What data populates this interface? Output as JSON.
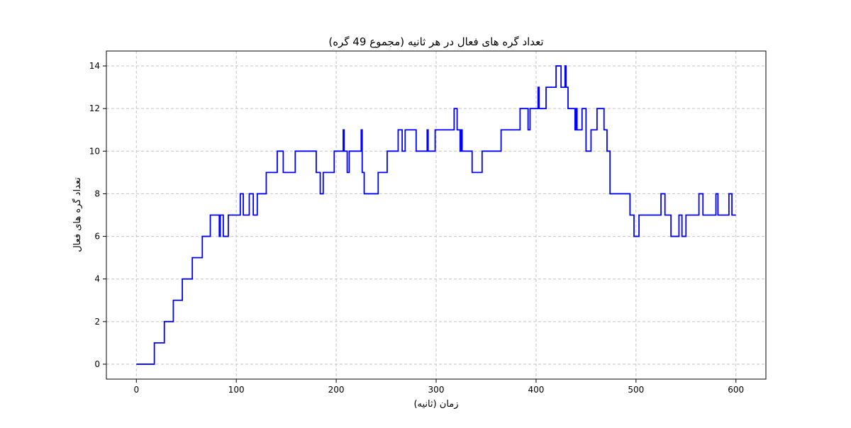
{
  "chart_data": {
    "type": "line",
    "title": "تعداد گره های فعال در هر ثانیه (مجموع 49 گره)",
    "xlabel": "زمان (ثانیه)",
    "ylabel": "تعداد گره های فعال",
    "xlim": [
      -30,
      630
    ],
    "ylim": [
      -0.7,
      14.7
    ],
    "xticks": [
      0,
      100,
      200,
      300,
      400,
      500,
      600
    ],
    "yticks": [
      0,
      2,
      4,
      6,
      8,
      10,
      12,
      14
    ],
    "grid": true,
    "line_color": "#0000ff",
    "step": "post",
    "x": [
      0,
      18,
      28,
      37,
      46,
      56,
      66,
      74,
      83,
      84,
      87,
      91,
      92,
      93,
      104,
      107,
      113,
      117,
      121,
      130,
      141,
      147,
      159,
      180,
      184,
      187,
      198,
      207,
      208,
      211,
      213,
      216,
      225,
      226,
      227,
      228,
      242,
      251,
      262,
      266,
      269,
      280,
      291,
      292,
      294,
      299,
      318,
      321,
      324,
      325,
      326,
      327,
      328,
      336,
      346,
      365,
      384,
      392,
      394,
      396,
      402,
      403,
      404,
      410,
      420,
      425,
      429,
      430,
      431,
      432,
      439,
      440,
      441,
      442,
      446,
      450,
      455,
      458,
      461,
      468,
      471,
      474,
      477,
      480,
      494,
      498,
      503,
      525,
      529,
      535,
      543,
      546,
      550,
      553,
      563,
      567,
      580,
      582,
      589,
      593,
      596,
      600
    ],
    "values": [
      0,
      1,
      2,
      3,
      4,
      5,
      6,
      7,
      6,
      7,
      6,
      6,
      7,
      7,
      8,
      7,
      8,
      7,
      8,
      9,
      10,
      9,
      10,
      9,
      8,
      9,
      10,
      11,
      10,
      9,
      10,
      10,
      11,
      9,
      9,
      8,
      9,
      10,
      11,
      10,
      11,
      10,
      11,
      10,
      10,
      11,
      12,
      11,
      10,
      11,
      10,
      10,
      10,
      9,
      10,
      11,
      12,
      11,
      12,
      12,
      13,
      12,
      12,
      13,
      14,
      13,
      14,
      13,
      13,
      12,
      11,
      12,
      11,
      11,
      12,
      10,
      11,
      11,
      12,
      11,
      10,
      8,
      8,
      8,
      7,
      6,
      7,
      8,
      7,
      6,
      7,
      6,
      7,
      7,
      8,
      7,
      8,
      7,
      7,
      8,
      7,
      7
    ]
  }
}
